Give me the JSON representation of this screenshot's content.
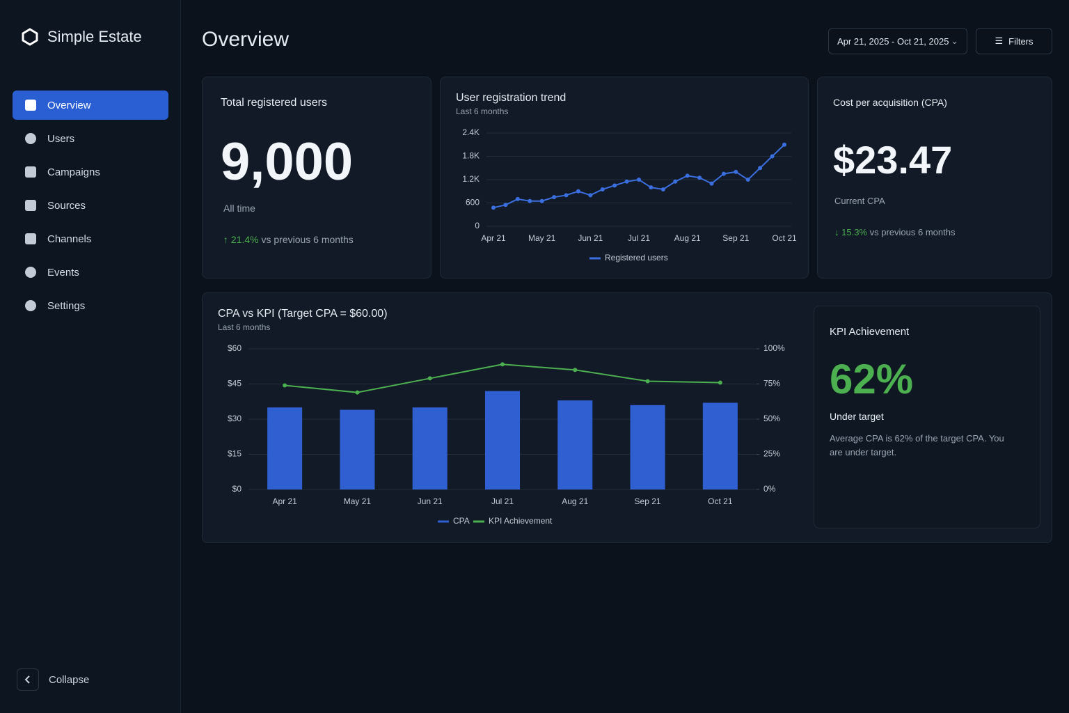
{
  "brand": "Simple Estate",
  "nav": [
    "Overview",
    "Users",
    "Campaigns",
    "Sources",
    "Channels",
    "Events",
    "Settings"
  ],
  "collapse": "Collapse",
  "header": {
    "title": "Overview",
    "date_range": "Apr 21, 2025 - Oct 21, 2025",
    "filters": "Filters"
  },
  "cards": {
    "total_users": {
      "title": "Total registered users",
      "value": "9,000",
      "caption": "All time",
      "change": "21.4%",
      "change_note": "vs previous 6 months"
    },
    "cpa": {
      "title": "Cost per acquisition (CPA)",
      "value": "$23.47",
      "caption": "Current CPA",
      "change": "15.3%",
      "change_note": "vs previous 6 months"
    },
    "kpi": {
      "title": "KPI Achievement",
      "value": "62%",
      "caption": "Under target",
      "note": "Average CPA is 62% of the target CPA. You are under target."
    }
  },
  "chart_data": [
    {
      "type": "line",
      "title": "User registration trend",
      "subtitle": "Last 6 months",
      "categories": [
        "Apr 21",
        null,
        null,
        null,
        "May 21",
        null,
        null,
        null,
        "Jun 21",
        null,
        null,
        null,
        "Jul 21",
        null,
        null,
        null,
        "Aug 21",
        null,
        null,
        null,
        "Sep 21",
        null,
        null,
        null,
        "Oct 21"
      ],
      "series": [
        {
          "name": "Registered users",
          "color": "#3b6fe0",
          "values": [
            480,
            550,
            700,
            650,
            650,
            750,
            800,
            900,
            800,
            950,
            1050,
            1150,
            1200,
            1000,
            950,
            1150,
            1300,
            1250,
            1100,
            1350,
            1400,
            1200,
            1500,
            1800,
            2100
          ]
        }
      ],
      "ylim": [
        0,
        2400
      ],
      "yticks": [
        0,
        600,
        {
          "value": 1200,
          "label": "1.2K"
        },
        {
          "value": 1800,
          "label": "1.8K"
        },
        {
          "value": 2400,
          "label": "2.4K"
        }
      ],
      "grid": true
    },
    {
      "type": "bar",
      "title": "CPA vs KPI (Target CPA = $60.00)",
      "subtitle": "Last 6 months",
      "categories": [
        "Apr 21",
        "May 21",
        "Jun 21",
        "Jul 21",
        "Aug 21",
        "Sep 21",
        "Oct 21"
      ],
      "series": [
        {
          "name": "CPA",
          "color": "#2f5fd0",
          "values": [
            35,
            34,
            35,
            42,
            38,
            36,
            37
          ]
        },
        {
          "name": "KPI Achievement",
          "color": "#4caf50",
          "type": "line",
          "axis": "y2",
          "values": [
            74,
            69,
            79,
            89,
            85,
            77,
            76
          ]
        }
      ],
      "ylim": [
        0,
        60
      ],
      "yticks": [
        {
          "value": 0,
          "label": "$0"
        },
        {
          "value": 15,
          "label": "$15"
        },
        {
          "value": 30,
          "label": "$30"
        },
        {
          "value": 45,
          "label": "$45"
        },
        {
          "value": 60,
          "label": "$60"
        }
      ],
      "y2lim": [
        0,
        100
      ],
      "y2ticks": [
        {
          "value": 0,
          "label": "0%"
        },
        {
          "value": 25,
          "label": "25%"
        },
        {
          "value": 50,
          "label": "50%"
        },
        {
          "value": 75,
          "label": "75%"
        },
        {
          "value": 100,
          "label": "100%"
        }
      ],
      "grid": true
    }
  ]
}
